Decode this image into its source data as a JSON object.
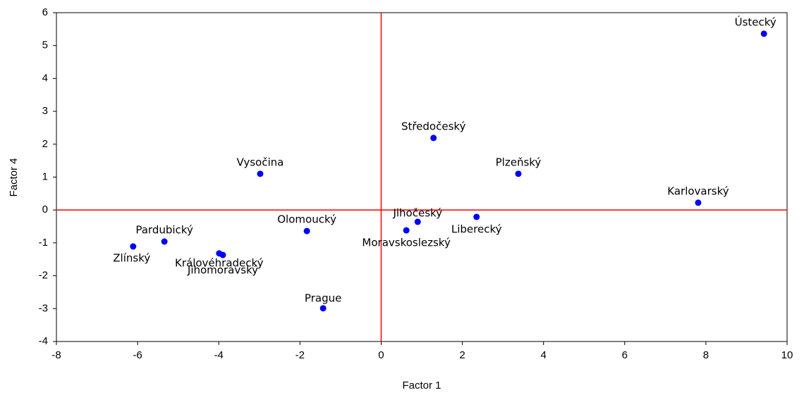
{
  "chart_data": {
    "type": "scatter",
    "xlabel": "Factor 1",
    "ylabel": "Factor 4",
    "color": "#0000ff",
    "refline_color": "#ff0000",
    "xlim": [
      -8,
      10
    ],
    "xticks": [
      -8,
      -6,
      -4,
      -2,
      0,
      2,
      4,
      6,
      8,
      10
    ],
    "ylim": [
      -4,
      6
    ],
    "yticks": [
      -4,
      -3,
      -2,
      -1,
      0,
      1,
      2,
      3,
      4,
      5,
      6
    ],
    "points": [
      {
        "label": "Ústecký",
        "x": 9.43,
        "y": 5.36
      },
      {
        "label": "Středočeský",
        "x": 1.29,
        "y": 2.19
      },
      {
        "label": "Plzeňský",
        "x": 3.38,
        "y": 1.1
      },
      {
        "label": "Karlovarský",
        "x": 7.81,
        "y": 0.22
      },
      {
        "label": "Vysočina",
        "x": -2.98,
        "y": 1.1
      },
      {
        "label": "Olomoucký",
        "x": -1.83,
        "y": -0.64
      },
      {
        "label": "Jihočeský",
        "x": 0.9,
        "y": -0.36
      },
      {
        "label": "Liberecký",
        "x": 2.35,
        "y": -0.21
      },
      {
        "label": "Moravskoslezský",
        "x": 0.62,
        "y": -0.62
      },
      {
        "label": "Pardubický",
        "x": -5.34,
        "y": -0.96
      },
      {
        "label": "Zlínský",
        "x": -6.11,
        "y": -1.11
      },
      {
        "label": "Královéhradecký",
        "x": -3.99,
        "y": -1.32
      },
      {
        "label": "Jihomoravský",
        "x": -3.9,
        "y": -1.37
      },
      {
        "label": "Prague",
        "x": -1.43,
        "y": -2.99
      }
    ]
  }
}
